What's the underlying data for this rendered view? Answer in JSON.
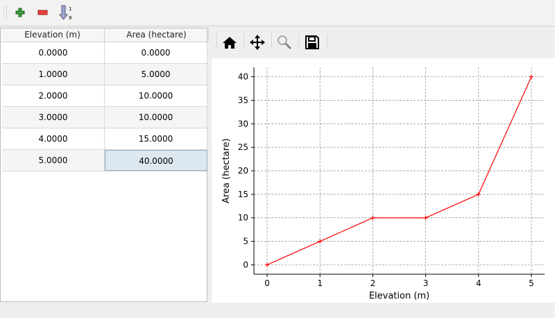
{
  "toolbar": {
    "add": "plus-icon",
    "remove": "minus-icon",
    "sort": "sort-ascending-icon"
  },
  "table": {
    "headers": [
      "Elevation (m)",
      "Area (hectare)"
    ],
    "rows": [
      [
        "0.0000",
        "0.0000"
      ],
      [
        "1.0000",
        "5.0000"
      ],
      [
        "2.0000",
        "10.0000"
      ],
      [
        "3.0000",
        "10.0000"
      ],
      [
        "4.0000",
        "15.0000"
      ],
      [
        "5.0000",
        "40.0000"
      ]
    ]
  },
  "plot_toolbar": {
    "home": "home-icon",
    "pan": "move-icon",
    "zoom": "zoom-icon",
    "save": "save-icon"
  },
  "chart_data": {
    "type": "line",
    "x": [
      0,
      1,
      2,
      3,
      4,
      5
    ],
    "y": [
      0,
      5,
      10,
      10,
      15,
      40
    ],
    "xlabel": "Elevation (m)",
    "ylabel": "Area (hectare)",
    "xlim": [
      -0.25,
      5.25
    ],
    "ylim": [
      -2,
      42
    ],
    "xticks": [
      0,
      1,
      2,
      3,
      4,
      5
    ],
    "yticks": [
      0,
      5,
      10,
      15,
      20,
      25,
      30,
      35,
      40
    ],
    "grid": true,
    "color": "#ff0000",
    "marker": "+"
  }
}
